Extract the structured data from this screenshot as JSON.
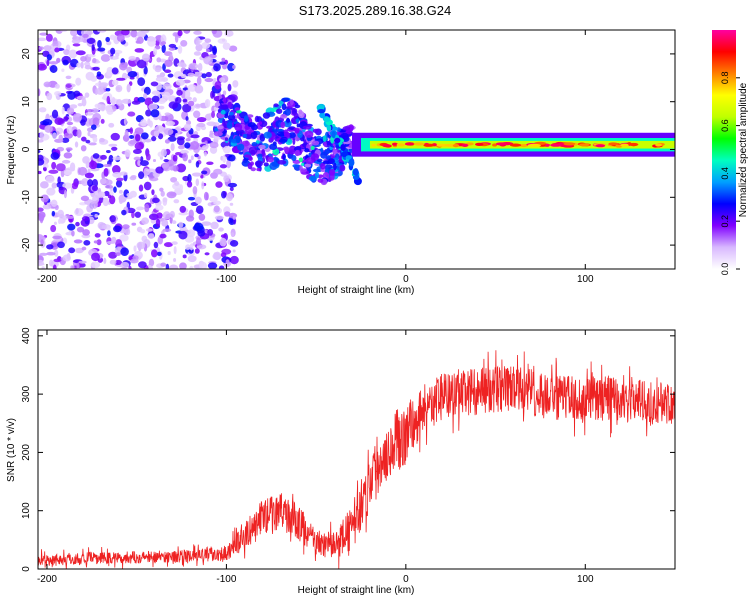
{
  "figure_title": "S173.2025.289.16.38.G24",
  "chart_data": [
    {
      "type": "heatmap",
      "title": "S173.2025.289.16.38.G24",
      "xlabel": "Height of straight line (km)",
      "ylabel": "Frequency (Hz)",
      "xlim": [
        -205,
        150
      ],
      "ylim": [
        -25,
        25
      ],
      "xticks": [
        -200,
        -100,
        0,
        100
      ],
      "xtick_labels": [
        "-200",
        "-100",
        "0",
        "100"
      ],
      "yticks": [
        -20,
        -10,
        0,
        10,
        20
      ],
      "ytick_labels": [
        "-20",
        "-10",
        "0",
        "10",
        "20"
      ],
      "colorbar": {
        "label": "Normalized spectral amplitude",
        "range": [
          0,
          1
        ],
        "ticks": [
          0,
          0.2,
          0.4,
          0.6,
          0.8
        ],
        "tick_labels": [
          "0.0",
          "0.2",
          "0.4",
          "0.6",
          "0.8"
        ],
        "colors": [
          "#ffffff",
          "#d8b8ff",
          "#8000ff",
          "#0000ff",
          "#00a0ff",
          "#00ffc0",
          "#00ff00",
          "#c0ff00",
          "#ffff00",
          "#ff8000",
          "#ff0000",
          "#ff00a0"
        ]
      },
      "features": [
        {
          "name": "scattered noise",
          "x_range": [
            -205,
            -105
          ],
          "freq_range": [
            -25,
            25
          ],
          "amplitude": 0.15
        },
        {
          "name": "wavy transition",
          "x_range": [
            -105,
            -30
          ],
          "freq_range": [
            -15,
            12
          ],
          "amplitude": 0.35
        },
        {
          "name": "signal carrier",
          "x_range": [
            -30,
            150
          ],
          "freq": 1,
          "amplitude": 0.9
        }
      ]
    },
    {
      "type": "line",
      "xlabel": "Height of straight line (km)",
      "ylabel": "SNR (10 * v/v)",
      "xlim": [
        -205,
        150
      ],
      "ylim": [
        0,
        410
      ],
      "xticks": [
        -200,
        -100,
        0,
        100
      ],
      "xtick_labels": [
        "-200",
        "-100",
        "0",
        "100"
      ],
      "yticks": [
        0,
        100,
        200,
        300,
        400
      ],
      "ytick_labels": [
        "0",
        "100",
        "200",
        "300",
        "400"
      ],
      "color": "#ee2222",
      "series": [
        {
          "name": "SNR envelope",
          "x": [
            -205,
            -180,
            -150,
            -120,
            -100,
            -90,
            -80,
            -70,
            -60,
            -50,
            -40,
            -30,
            -20,
            -10,
            0,
            10,
            20,
            40,
            60,
            80,
            100,
            120,
            140,
            150
          ],
          "mean": [
            15,
            18,
            20,
            22,
            28,
            55,
            90,
            100,
            80,
            45,
            40,
            70,
            150,
            210,
            230,
            275,
            295,
            305,
            310,
            295,
            290,
            295,
            285,
            285
          ],
          "noise": [
            12,
            12,
            12,
            12,
            15,
            25,
            35,
            35,
            35,
            25,
            25,
            45,
            55,
            60,
            60,
            45,
            45,
            45,
            45,
            45,
            45,
            45,
            40,
            40
          ]
        }
      ]
    }
  ]
}
